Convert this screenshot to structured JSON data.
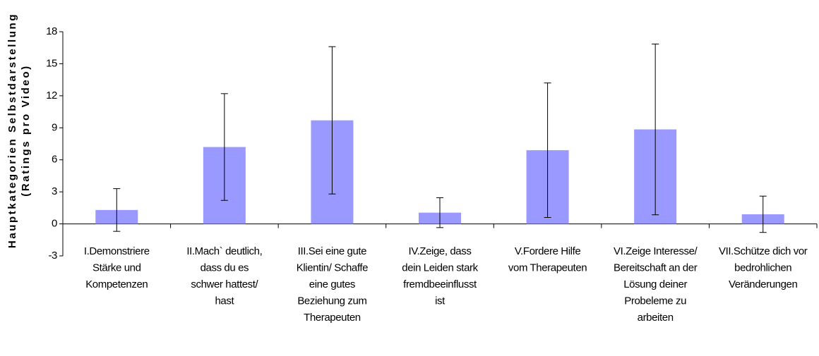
{
  "chart_data": {
    "type": "bar",
    "ylabel": [
      "Hauptkategorien Selbstdarstellung",
      "(Ratings pro Video)"
    ],
    "categories": [
      [
        "I.Demonstriere",
        "Stärke und",
        "Kompetenzen"
      ],
      [
        "II.Mach` deutlich,",
        "dass du es",
        "schwer hattest/",
        "hast"
      ],
      [
        "III.Sei eine gute",
        "Klientin/ Schaffe",
        "eine gutes",
        "Beziehung zum",
        "Therapeuten"
      ],
      [
        "IV.Zeige, dass",
        "dein Leiden stark",
        "fremdbeeinflusst",
        "ist"
      ],
      [
        "V.Fordere Hilfe",
        "vom Therapeuten"
      ],
      [
        "VI.Zeige Interesse/",
        "Bereitschaft an der",
        "Lösung deiner",
        "Probeleme zu",
        "arbeiten"
      ],
      [
        "VII.Schütze dich vor",
        "bedrohlichen",
        "Veränderungen"
      ]
    ],
    "values": [
      1.3,
      7.2,
      9.7,
      1.05,
      6.9,
      8.85,
      0.9
    ],
    "errors": [
      2.0,
      5.0,
      6.9,
      1.4,
      6.3,
      8.0,
      1.7
    ],
    "color": "#9999ff",
    "ylim": [
      -3,
      18
    ],
    "yticks": [
      -3,
      0,
      3,
      6,
      9,
      12,
      15,
      18
    ]
  }
}
